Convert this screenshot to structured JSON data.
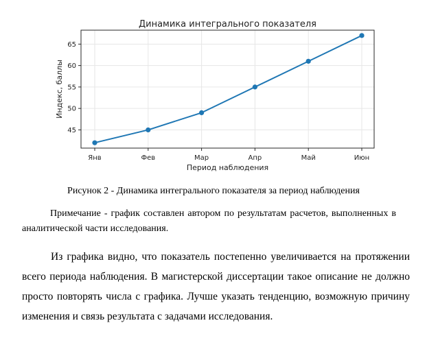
{
  "chart_data": {
    "type": "line",
    "title": "Динамика интегрального показателя",
    "xlabel": "Период наблюдения",
    "ylabel": "Индекс, баллы",
    "categories": [
      "Янв",
      "Фев",
      "Мар",
      "Апр",
      "Май",
      "Июн"
    ],
    "series": [
      {
        "values": [
          42,
          45,
          49,
          55,
          61,
          67
        ]
      }
    ],
    "yticks": [
      45,
      50,
      55,
      60,
      65
    ],
    "ylim": [
      40.75,
      68.25
    ],
    "grid": true,
    "color": "#1f77b4"
  },
  "document": {
    "figure_caption": "Рисунок 2 - Динамика интегрального показателя за период наблюдения",
    "note": "Примечание - график составлен автором по результатам расчетов, выполненных в аналитической части исследования.",
    "paragraph": "Из графика видно, что показатель постепенно увеличивается на протяжении всего периода наблюдения. В магистерской диссертации такое описание не должно просто повторять числа с графика. Лучше указать тенденцию, возможную причину изменения и связь результата с задачами исследования."
  }
}
